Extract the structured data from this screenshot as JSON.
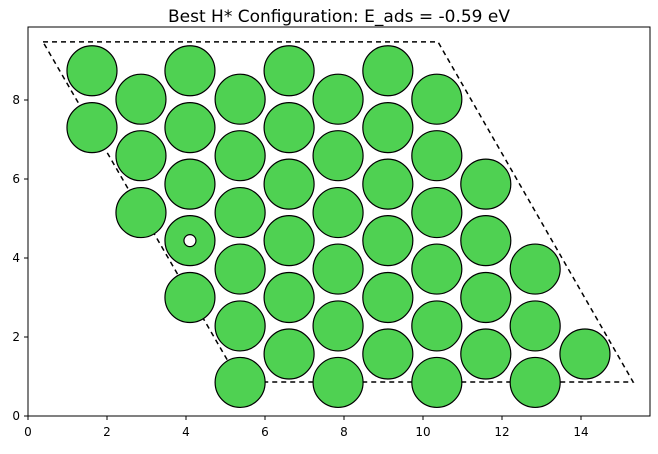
{
  "chart_data": {
    "type": "scatter",
    "title": "Best H* Configuration: E_ads = -0.59 eV",
    "xlabel": "",
    "ylabel": "",
    "xlim": [
      0,
      15.65
    ],
    "ylim": [
      0,
      9.7
    ],
    "xticks": [
      "0",
      "2",
      "4",
      "6",
      "8",
      "10",
      "12",
      "14"
    ],
    "yticks": [
      "0",
      "2",
      "4",
      "6",
      "8"
    ],
    "grid": false,
    "colors": {
      "substrate": "#4fd152",
      "adsorbate": "#ffffff",
      "edge": "#000000",
      "cell": "#000000"
    },
    "substrate_atoms": [
      [
        5.37,
        0.85
      ],
      [
        7.85,
        0.85
      ],
      [
        10.35,
        0.85
      ],
      [
        12.84,
        0.85
      ],
      [
        6.61,
        1.57
      ],
      [
        9.11,
        1.57
      ],
      [
        11.59,
        1.57
      ],
      [
        14.1,
        1.57
      ],
      [
        5.37,
        2.28
      ],
      [
        7.85,
        2.28
      ],
      [
        10.35,
        2.28
      ],
      [
        12.84,
        2.28
      ],
      [
        4.1,
        3.0
      ],
      [
        6.61,
        3.0
      ],
      [
        9.11,
        3.0
      ],
      [
        11.59,
        3.0
      ],
      [
        5.37,
        3.72
      ],
      [
        7.85,
        3.72
      ],
      [
        10.35,
        3.72
      ],
      [
        12.84,
        3.72
      ],
      [
        4.1,
        4.44
      ],
      [
        6.61,
        4.44
      ],
      [
        9.11,
        4.44
      ],
      [
        11.59,
        4.44
      ],
      [
        2.86,
        5.15
      ],
      [
        5.37,
        5.15
      ],
      [
        7.85,
        5.15
      ],
      [
        10.35,
        5.15
      ],
      [
        4.1,
        5.87
      ],
      [
        6.61,
        5.87
      ],
      [
        9.11,
        5.87
      ],
      [
        11.59,
        5.87
      ],
      [
        2.86,
        6.59
      ],
      [
        5.37,
        6.59
      ],
      [
        7.85,
        6.59
      ],
      [
        10.35,
        6.59
      ],
      [
        1.62,
        7.3
      ],
      [
        4.1,
        7.3
      ],
      [
        6.61,
        7.3
      ],
      [
        9.11,
        7.3
      ],
      [
        2.86,
        8.02
      ],
      [
        5.37,
        8.02
      ],
      [
        7.85,
        8.02
      ],
      [
        10.35,
        8.02
      ],
      [
        1.62,
        8.74
      ],
      [
        4.1,
        8.74
      ],
      [
        6.61,
        8.74
      ],
      [
        9.11,
        8.74
      ]
    ],
    "adsorbate_atoms": [
      [
        4.1,
        4.44
      ]
    ],
    "cell_outline": [
      [
        0.38,
        9.47
      ],
      [
        10.38,
        9.47
      ],
      [
        15.32,
        0.86
      ],
      [
        5.37,
        0.86
      ]
    ]
  }
}
